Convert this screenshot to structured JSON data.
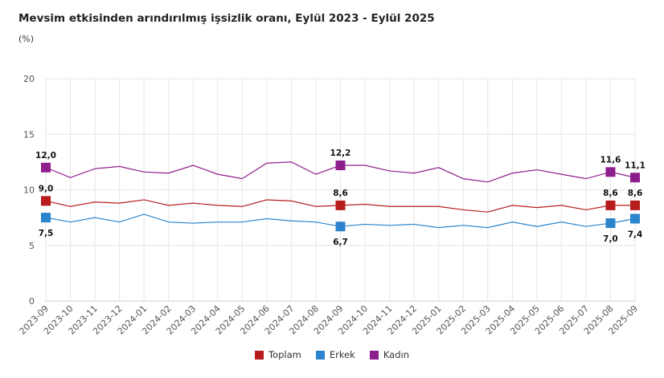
{
  "chart_data": {
    "type": "line",
    "title": "Mevsim etkisinden arındırılmış işsizlik oranı, Eylül 2023 - Eylül 2025",
    "unit": "(%)",
    "ylim": [
      0,
      20
    ],
    "yticks": [
      0,
      5,
      10,
      15,
      20
    ],
    "grid": true,
    "legend_position": "bottom",
    "categories": [
      "2023-09",
      "2023-10",
      "2023-11",
      "2023-12",
      "2024-01",
      "2024-02",
      "2024-03",
      "2024-04",
      "2024-05",
      "2024-06",
      "2024-07",
      "2024-08",
      "2024-09",
      "2024-10",
      "2024-11",
      "2024-12",
      "2025-01",
      "2025-02",
      "2025-03",
      "2025-04",
      "2025-05",
      "2025-06",
      "2025-07",
      "2025-08",
      "2025-09"
    ],
    "labeled_indices": [
      0,
      12,
      23,
      24
    ],
    "series": [
      {
        "name": "Toplam",
        "color": "#b71c1c",
        "values": [
          9.0,
          8.5,
          8.9,
          8.8,
          9.1,
          8.6,
          8.8,
          8.6,
          8.5,
          9.1,
          9.0,
          8.5,
          8.6,
          8.7,
          8.5,
          8.5,
          8.5,
          8.2,
          8.0,
          8.6,
          8.4,
          8.6,
          8.2,
          8.6,
          8.6
        ]
      },
      {
        "name": "Erkek",
        "color": "#2b84cc",
        "values": [
          7.5,
          7.1,
          7.5,
          7.1,
          7.8,
          7.1,
          7.0,
          7.1,
          7.1,
          7.4,
          7.2,
          7.1,
          6.7,
          6.9,
          6.8,
          6.9,
          6.6,
          6.8,
          6.6,
          7.1,
          6.7,
          7.1,
          6.7,
          7.0,
          7.4
        ]
      },
      {
        "name": "Kadın",
        "color": "#8e1e8c",
        "values": [
          12.0,
          11.1,
          11.9,
          12.1,
          11.6,
          11.5,
          12.2,
          11.4,
          11.0,
          12.4,
          12.5,
          11.4,
          12.2,
          12.2,
          11.7,
          11.5,
          12.0,
          11.0,
          10.7,
          11.5,
          11.8,
          11.4,
          11.0,
          11.6,
          11.1
        ]
      }
    ]
  }
}
